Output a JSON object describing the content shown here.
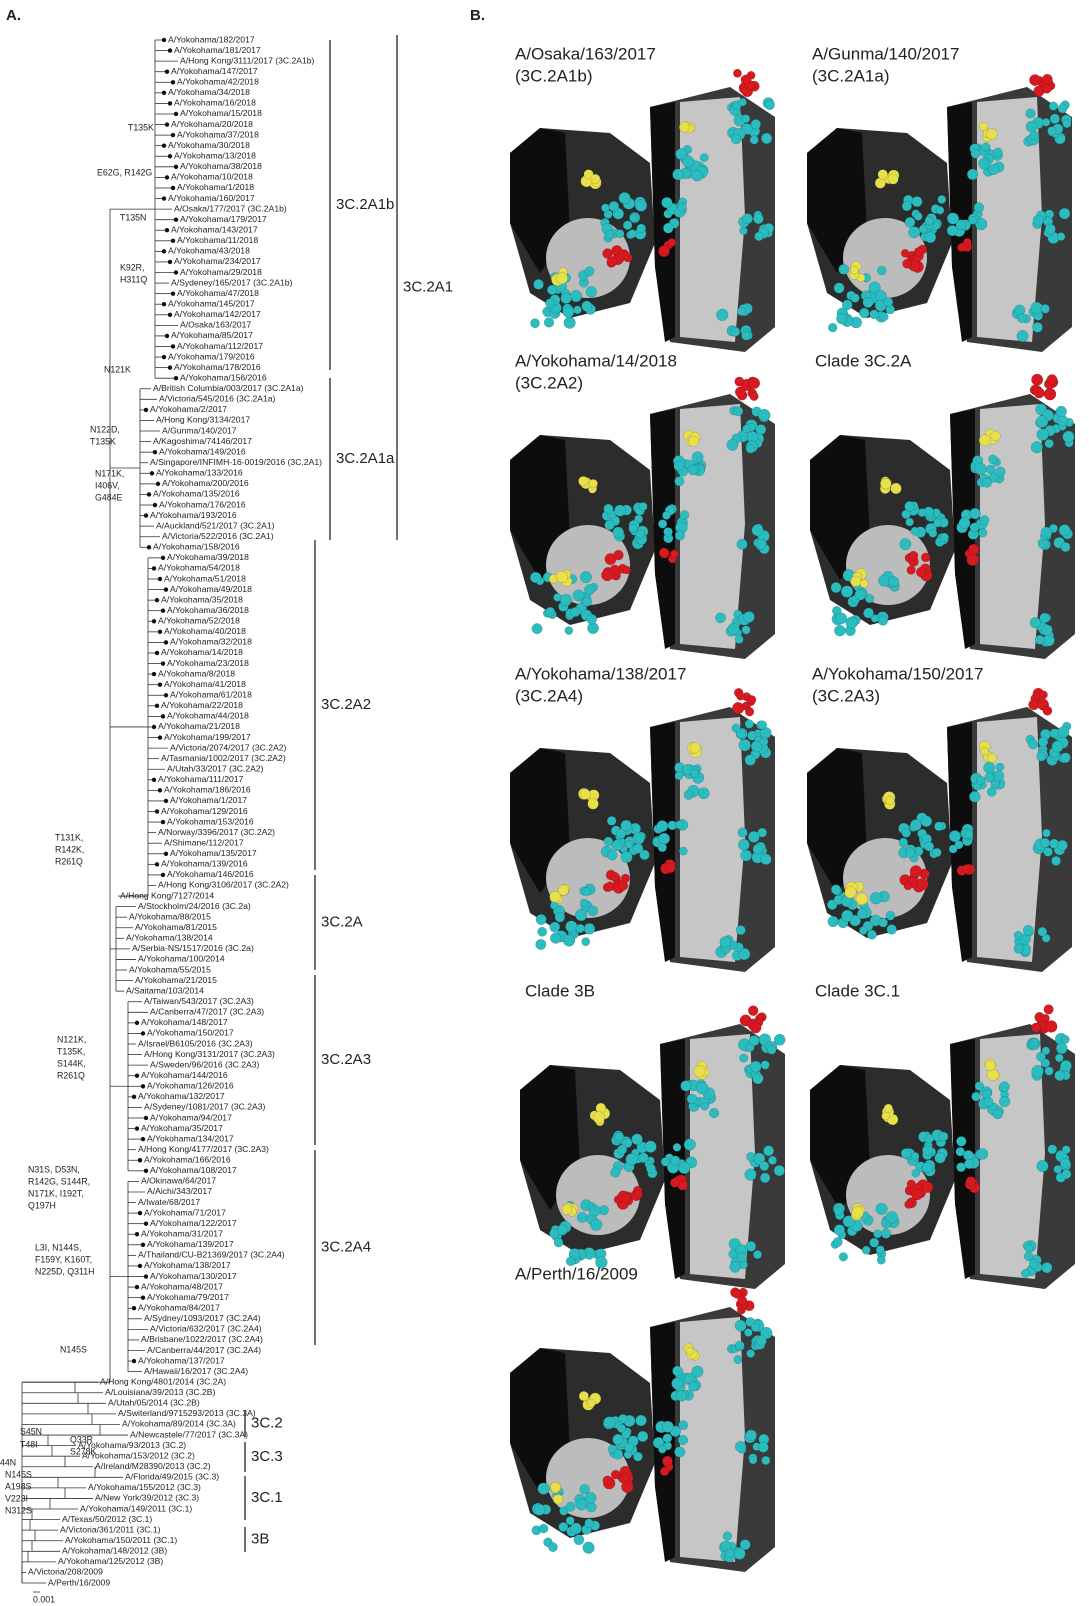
{
  "panel_a": {
    "label": "A.",
    "leaves": [
      "A/Yokohama/182/2017",
      {
        "label": "A/Yokohama/181/2017",
        "color": "#f26522"
      },
      "A/Hong Kong/3111/2017  (3C.2A1b)",
      "A/Yokohama/147/2017",
      "A/Yokohama/42/2018",
      "A/Yokohama/34/2018",
      "A/Yokohama/16/2018",
      "A/Yokohama/15/2018",
      "A/Yokohama/20/2018",
      "A/Yokohama/37/2018",
      "A/Yokohama/30/2018",
      "A/Yokohama/13/2018",
      "A/Yokohama/38/2018",
      "A/Yokohama/10/2018",
      {
        "label": "A/Yokohama/1/2018",
        "color": "#f26522"
      },
      "A/Yokohama/160/2017",
      "A/Osaka/177/2017  (3C.2A1b)",
      "A/Yokohama/179/2017",
      "A/Yokohama/143/2017",
      "A/Yokohama/11/2018",
      "A/Yokohama/43/2018",
      "A/Yokohama/234/2017",
      "A/Yokohama/29/2018",
      "A/Sydeney/165/2017  (3C.2A1b)",
      "A/Yokohama/47/2018",
      {
        "label": "A/Yokohama/145/2017",
        "color": "#f26522"
      },
      "A/Yokohama/142/2017",
      {
        "label": "A/Osaka/163/2017",
        "color": "#f26522"
      },
      "A/Yokohama/85/2017",
      "A/Yokohama/112/2017",
      "A/Yokohama/179/2016",
      "A/Yokohama/178/2016",
      "A/Yokohama/156/2016",
      "A/British Columbia/003/2017 (3C.2A1a)",
      "A/Victoria/545/2016 (3C.2A1a)",
      "A/Yokohama/2/2017",
      "A/Hong Kong/3134/2017",
      {
        "label": "A/Gunma/140/2017",
        "color": "#f26522"
      },
      {
        "label": "A/Kagoshima/74146/2017",
        "color": "#f26522"
      },
      "A/Yokohama/149/2016",
      {
        "label": "A/Singapore/INFIMH-16-0019/2016 (3C.2A1)",
        "color": "#f26522"
      },
      "A/Yokohama/133/2016",
      "A/Yokohama/200/2016",
      "A/Yokohama/135/2016",
      "A/Yokohama/176/2016",
      "A/Yokohama/193/2016",
      "A/Auckland/521/2017  (3C.2A1)",
      "A/Victoria/522/2016 (3C.2A1)",
      "A/Yokohama/158/2016",
      "A/Yokohama/39/2018",
      "A/Yokohama/54/2018",
      "A/Yokohama/51/2018",
      "A/Yokohama/49/2018",
      "A/Yokohama/35/2018",
      "A/Yokohama/36/2018",
      "A/Yokohama/52/2018",
      "A/Yokohama/40/2018",
      "A/Yokohama/32/2018",
      {
        "label": "A/Yokohama/14/2018",
        "color": "#f26522"
      },
      "A/Yokohama/23/2018",
      "A/Yokohama/8/2018",
      "A/Yokohama/41/2018",
      "A/Yokohama/61/2018",
      "A/Yokohama/22/2018",
      "A/Yokohama/44/2018",
      "A/Yokohama/21/2018",
      {
        "label": "A/Yokohama/199/2017",
        "color": "#f26522"
      },
      "A/Victoria/2074/2017 (3C.2A2)",
      "A/Tasmania/1002/2017 (3C.2A2)",
      "A/Utah/33/2017  (3C.2A2)",
      "A/Yokohama/111/2017",
      "A/Yokohama/186/2016",
      "A/Yokohama/1/2017",
      "A/Yokohama/129/2016",
      "A/Yokohama/153/2016",
      "A/Norway/3396/2017  (3C.2A2)",
      {
        "label": "A/Shimane/112/2017",
        "color": "#f26522"
      },
      "A/Yokohama/135/2017",
      "A/Yokohama/139/2016",
      "A/Yokohama/146/2016",
      "A/Hong Kong/3106/2017  (3C.2A2)",
      {
        "label": "A/Hong Kong/7127/2014",
        "color": "#f26522"
      },
      "A/Stockholm/24/2016 (3C.2a)",
      "A/Yokohama/88/2015",
      "A/Yokohama/81/2015",
      "A/Yokohama/138/2014",
      "A/Serbia-NS/1517/2016 (3C.2a)",
      "A/Yokohama/100/2014",
      "A/Yokohama/55/2015",
      "A/Yokohama/21/2015",
      "A/Saitama/103/2014",
      "A/Taiwan/543/2017  (3C.2A3)",
      "A/Canberra/47/2017  (3C.2A3)",
      {
        "label": "A/Yokohama/148/2017",
        "color": "#f26522"
      },
      {
        "label": "A/Yokohama/150/2017",
        "color": "#f26522"
      },
      "A/Israel/B6105/2016 (3C.2A3)",
      "A/Hong Kong/3131/2017  (3C.2A3)",
      "A/Sweden/96/2016 (3C.2A3)",
      "A/Yokohama/144/2016",
      "A/Yokohama/126/2016",
      "A/Yokohama/132/2017",
      "A/Sydeney/1081/2017  (3C.2A3)",
      "A/Yokohama/94/2017",
      "A/Yokohama/35/2017",
      "A/Yokohama/134/2017",
      "A/Hong Kong/4177/2017  (3C.2A3)",
      "A/Yokohama/166/2016",
      "A/Yokohama/108/2017",
      {
        "label": "A/Okinawa/64/2017",
        "color": "#f26522"
      },
      {
        "label": "A/Aichi/343/2017",
        "color": "#f26522"
      },
      "A/Iwate/68/2017",
      "A/Yokohama/71/2017",
      "A/Yokohama/122/2017",
      "A/Yokohama/31/2017",
      "A/Yokohama/139/2017",
      "A/Thailand/CU-B21369/2017  (3C.2A4)",
      {
        "label": "A/Yokohama/138/2017",
        "color": "#f26522"
      },
      "A/Yokohama/130/2017",
      "A/Yokohama/48/2017",
      "A/Yokohama/79/2017",
      "A/Yokohama/84/2017",
      "A/Sydney/1093/2017  (3C.2A4)",
      "A/Victoria/632/2017  (3C.2A4)",
      "A/Brisbane/1022/2017  (3C.2A4)",
      "A/Canberra/44/2017  (3C.2A4)",
      "A/Yokohama/137/2017",
      "A/Hawaii/16/2017  (3C.2A4)",
      "A/Hong Kong/4801/2014  (3C.2A)",
      "A/Louisiana/39/2013 (3C.2B)",
      "A/Utah/05/2014  (3C.2B)",
      "A/Switerland/9715293/2013 (3C.3A)",
      "A/Yokohama/89/2014 (3C.3A)",
      "A/Newcastele/77/2017 (3C.3A)",
      "A/Yokohama/93/2013 (3C.2)",
      "A/Yokohama/153/2012 (3C.2)",
      "A/Ireland/M28390/2013 (3C.2)",
      "A/Florida/49/2015 (3C.3)",
      "A/Yokohama/155/2012 (3C.3)",
      "A/New York/39/2012 (3C.3)",
      "A/Yokohama/149/2011 (3C.1)",
      "A/Texas/50/2012 (3C.1)",
      "A/Victoria/361/2011 (3C.1)",
      "A/Yokohama/150/2011 (3C.1)",
      "A/Yokohama/148/2012 (3B)",
      "A/Yokohama/125/2012 (3B)",
      "A/Victoria/208/2009",
      "A/Perth/16/2009"
    ],
    "clades": [
      "3C.2A1b",
      "3C.2A1",
      "3C.2A1a",
      "3C.2A2",
      "3C.2A",
      "3C.2A3",
      "3C.2A4",
      "3C.2",
      "3C.3",
      "3C.1",
      "3B"
    ],
    "mutations": [
      {
        "lines": [
          "T135K"
        ],
        "color": "#2e8b3a"
      },
      {
        "lines": [
          "E62G, R142G"
        ],
        "color": "#222222"
      },
      {
        "lines": [
          "T135N"
        ],
        "color": "#2e8b3a"
      },
      {
        "lines": [
          "K92R,",
          "H311Q"
        ],
        "color": "#222222"
      },
      {
        "lines": [
          "N121K"
        ],
        "color": "#222222"
      },
      {
        "lines": [
          "N122D,",
          "T135K"
        ],
        "color": "#2e8b3a"
      },
      {
        "lines": [
          "N171K,",
          "I406V,",
          "G484E"
        ],
        "color": "#222222"
      },
      {
        "lines": [
          "T131K,",
          "R142K,",
          "R261Q"
        ],
        "color": "#222222"
      },
      {
        "lines": [
          "N121K,",
          "T135K,",
          "S144K,",
          "R261Q"
        ],
        "color": "#222222"
      },
      {
        "lines": [
          "N31S, D53N,",
          "R142G, S144R,",
          "N171K, I192T,",
          "Q197H"
        ],
        "color": "#222222"
      },
      {
        "lines": [
          "L3I, N144S,",
          "F159Y, K160T,",
          "N225D, Q311H"
        ],
        "color": "#222222"
      },
      {
        "lines": [
          "N145S"
        ],
        "color": "#222222"
      },
      {
        "lines": [
          "S45N"
        ],
        "color": "#e02020"
      },
      {
        "lines": [
          "T48I"
        ],
        "color": "#222222"
      },
      {
        "lines": [
          "Q33R",
          "S278K"
        ],
        "color": "#222222"
      },
      {
        "lines": [
          "N145S",
          "A198S",
          "V223I",
          "N312S"
        ],
        "color": "#222222"
      },
      {
        "lines": [
          "44N"
        ],
        "color": "#e02020"
      }
    ],
    "scale_label": "0.001"
  },
  "panel_b": {
    "label": "B.",
    "structures": [
      {
        "title": [
          "A/Osaka/163/2017",
          "(3C.2A1b)"
        ]
      },
      {
        "title": [
          "A/Gunma/140/2017",
          "(3C.2A1a)"
        ]
      },
      {
        "title": [
          "A/Yokohama/14/2018",
          "(3C.2A2)"
        ]
      },
      {
        "title": [
          "Clade 3C.2A"
        ]
      },
      {
        "title": [
          "A/Yokohama/138/2017",
          "(3C.2A4)"
        ]
      },
      {
        "title": [
          "A/Yokohama/150/2017",
          "(3C.2A3)"
        ]
      },
      {
        "title": [
          "Clade 3B"
        ]
      },
      {
        "title": [
          "Clade 3C.1"
        ]
      },
      {
        "title": [
          "A/Perth/16/2009"
        ]
      }
    ]
  }
}
